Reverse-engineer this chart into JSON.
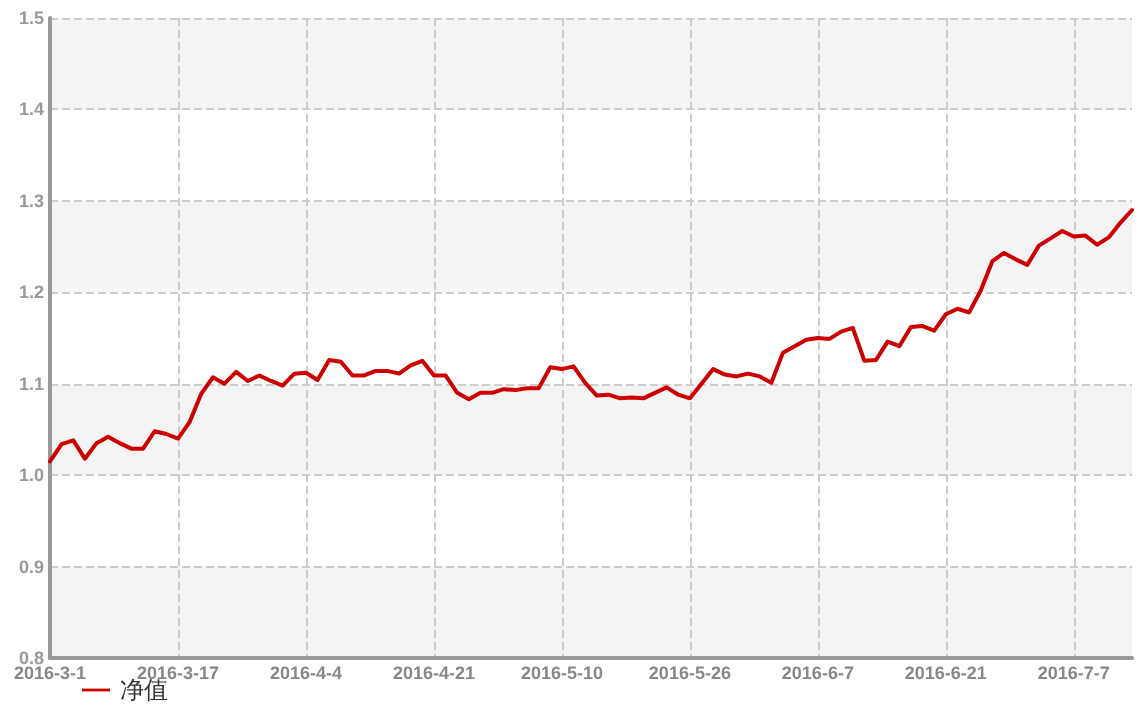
{
  "chart_data": {
    "type": "line",
    "categories": [
      "2016-3-1",
      null,
      null,
      null,
      null,
      null,
      null,
      null,
      null,
      null,
      null,
      "2016-3-17",
      null,
      null,
      null,
      null,
      null,
      null,
      null,
      null,
      null,
      null,
      "2016-4-4",
      null,
      null,
      null,
      null,
      null,
      null,
      null,
      null,
      null,
      null,
      "2016-4-21",
      null,
      null,
      null,
      null,
      null,
      null,
      null,
      null,
      null,
      null,
      "2016-5-10",
      null,
      null,
      null,
      null,
      null,
      null,
      null,
      null,
      null,
      null,
      "2016-5-26",
      null,
      null,
      null,
      null,
      null,
      null,
      null,
      null,
      null,
      null,
      "2016-6-7",
      null,
      null,
      null,
      null,
      null,
      null,
      null,
      null,
      null,
      null,
      "2016-6-21",
      null,
      null,
      null,
      null,
      null,
      null,
      null,
      null,
      null,
      null,
      "2016-7-7",
      null,
      null,
      null,
      null,
      null
    ],
    "series": [
      {
        "name": "净值",
        "color": "#cc0000",
        "values": [
          1.015,
          1.034,
          1.038,
          1.018,
          1.035,
          1.042,
          1.035,
          1.029,
          1.029,
          1.048,
          1.045,
          1.04,
          1.058,
          1.089,
          1.107,
          1.1,
          1.113,
          1.103,
          1.109,
          1.103,
          1.098,
          1.111,
          1.112,
          1.104,
          1.126,
          1.124,
          1.109,
          1.109,
          1.114,
          1.114,
          1.111,
          1.12,
          1.125,
          1.109,
          1.109,
          1.09,
          1.083,
          1.09,
          1.09,
          1.094,
          1.093,
          1.095,
          1.095,
          1.118,
          1.116,
          1.119,
          1.101,
          1.087,
          1.088,
          1.084,
          1.085,
          1.084,
          1.09,
          1.096,
          1.088,
          1.084,
          1.1,
          1.116,
          1.11,
          1.108,
          1.111,
          1.108,
          1.101,
          1.134,
          1.141,
          1.148,
          1.15,
          1.149,
          1.157,
          1.161,
          1.125,
          1.126,
          1.146,
          1.141,
          1.162,
          1.163,
          1.158,
          1.176,
          1.182,
          1.178,
          1.202,
          1.234,
          1.243,
          1.236,
          1.23,
          1.251,
          1.259,
          1.267,
          1.261,
          1.262,
          1.252,
          1.26,
          1.276,
          1.29
        ]
      }
    ],
    "ylim": [
      0.8,
      1.5
    ],
    "yticks": [
      0.8,
      0.9,
      {
        "value": 1,
        "label": "1.0"
      },
      1.1,
      1.2,
      1.3,
      1.4,
      1.5
    ],
    "grid": true,
    "legend": "bottom left",
    "marker": "none",
    "line_style": "solid"
  }
}
